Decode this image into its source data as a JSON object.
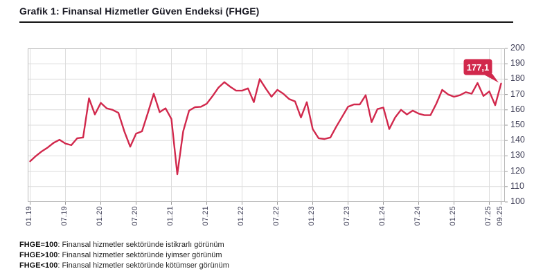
{
  "page": {
    "title": "Grafik 1: Finansal Hizmetler Güven Endeksi (FHGE)"
  },
  "footnotes": [
    {
      "prefix": "FHGE=100",
      "text": ": Finansal hizmetler sektöründe istikrarlı görünüm"
    },
    {
      "prefix": "FHGE>100",
      "text": ": Finansal hizmetler sektöründe iyimser görünüm"
    },
    {
      "prefix": "FHGE<100",
      "text": ": Finansal hizmetler sektöründe kötümser görünüm"
    }
  ],
  "chart_data": {
    "type": "line",
    "title": "Grafik 1: Finansal Hizmetler Güven Endeksi (FHGE)",
    "series_name": "FHGE",
    "frequency": "monthly",
    "x_start": "01.2019",
    "x_end": "09.2025",
    "x_tick_labels": [
      "01.19",
      "07.19",
      "01.20",
      "07.20",
      "01.21",
      "07.21",
      "01.22",
      "07.22",
      "01.23",
      "07.23",
      "01.24",
      "07.24",
      "01.25",
      "07.25",
      "09.25"
    ],
    "x_tick_month_index": [
      0,
      6,
      12,
      18,
      24,
      30,
      36,
      42,
      48,
      54,
      60,
      66,
      72,
      78,
      80
    ],
    "y_ticks": [
      200,
      190,
      180,
      170,
      160,
      150,
      140,
      130,
      120,
      110,
      100
    ],
    "ylim": [
      100,
      200
    ],
    "grid": true,
    "legend": false,
    "values": [
      126.5,
      130,
      133,
      135.5,
      138.5,
      140.5,
      138,
      137,
      141.5,
      142,
      167.5,
      157,
      164.5,
      161,
      160,
      158,
      146,
      136,
      144.5,
      146,
      158,
      170.5,
      158.5,
      161,
      154,
      118,
      146,
      159.5,
      161.7,
      162,
      164,
      169,
      174.5,
      178,
      175,
      172.5,
      172.5,
      174,
      165,
      180,
      174,
      168.5,
      173,
      170.5,
      167,
      165.5,
      155,
      165,
      147.5,
      141.5,
      141,
      142,
      149,
      155.5,
      162,
      163.5,
      163.5,
      169.5,
      152,
      160.5,
      161.5,
      147.5,
      155,
      160,
      157,
      159.5,
      157.5,
      156.5,
      156.5,
      164,
      173,
      170,
      168.5,
      169.5,
      171.5,
      170.5,
      177.5,
      169,
      172,
      163,
      177.1
    ],
    "last_value": 177.1,
    "last_value_label": "177,1",
    "line_color": "#d1284c",
    "label_bg_color": "#d1284c",
    "grid_color": "#dcdcdc",
    "border_color": "#b9b9b9",
    "tick_color": "#9b9b9b"
  }
}
